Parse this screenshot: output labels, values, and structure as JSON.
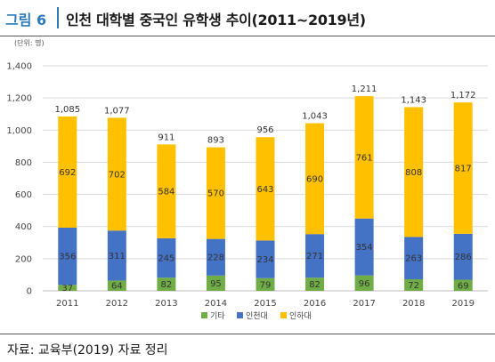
{
  "header": {
    "figure_label": "그림 6",
    "title": "인천 대학별 중국인 유학생 추이(2011~2019년)"
  },
  "source": "자료: 교육부(2019) 자료 정리",
  "chart_data": {
    "type": "stacked-bar",
    "unit_label": "(단위: 명)",
    "categories": [
      "2011",
      "2012",
      "2013",
      "2014",
      "2015",
      "2016",
      "2017",
      "2018",
      "2019"
    ],
    "series": [
      {
        "name": "기타",
        "color": "#70ad47",
        "values": [
          37,
          64,
          82,
          95,
          79,
          82,
          96,
          72,
          69
        ]
      },
      {
        "name": "인천대",
        "color": "#4472c4",
        "values": [
          356,
          311,
          245,
          228,
          234,
          271,
          354,
          263,
          286
        ]
      },
      {
        "name": "인하대",
        "color": "#ffc000",
        "values": [
          692,
          702,
          584,
          570,
          643,
          690,
          761,
          808,
          817
        ]
      }
    ],
    "totals": [
      "1,085",
      "1,077",
      "911",
      "893",
      "956",
      "1,043",
      "1,211",
      "1,143",
      "1,172"
    ],
    "ylim": [
      0,
      1400
    ],
    "yticks": [
      0,
      200,
      400,
      600,
      800,
      1000,
      1200,
      1400
    ],
    "ytick_labels": [
      "0",
      "200",
      "400",
      "600",
      "800",
      "1,000",
      "1,200",
      "1,400"
    ],
    "grid": true,
    "legend_position": "bottom"
  }
}
